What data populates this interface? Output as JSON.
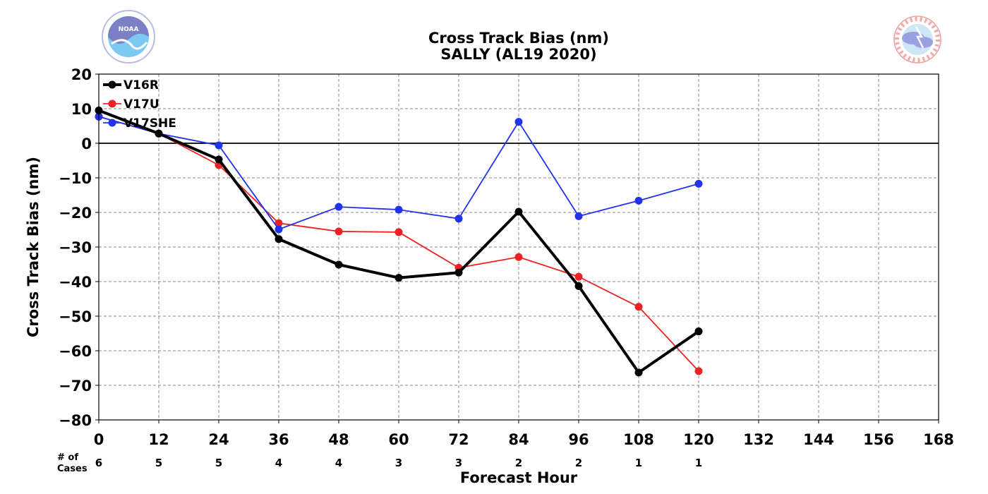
{
  "colors": {
    "V16R": "#000000",
    "V17U": "#ee2222",
    "V17SHE": "#2233ee",
    "grid": "#888888"
  },
  "logos": {
    "left": {
      "name": "noaa-logo",
      "text": "NOAA"
    },
    "right": {
      "name": "nws-logo",
      "text": "NATIONAL WEATHER SERVICE"
    }
  },
  "chart_data": {
    "type": "line",
    "title": "Cross Track Bias (nm)",
    "subtitle": "SALLY (AL19 2020)",
    "xlabel": "Forecast Hour",
    "ylabel": "Cross Track Bias (nm)",
    "xlim": [
      0,
      168
    ],
    "ylim": [
      -80,
      20
    ],
    "x_ticks": [
      0,
      12,
      24,
      36,
      48,
      60,
      72,
      84,
      96,
      108,
      120,
      132,
      144,
      156,
      168
    ],
    "y_ticks": [
      20,
      10,
      0,
      -10,
      -20,
      -30,
      -40,
      -50,
      -60,
      -70,
      -80
    ],
    "grid": true,
    "zero_line": true,
    "legend_position": "top-left",
    "cases_label": [
      "# of",
      "Cases"
    ],
    "cases": [
      6,
      5,
      5,
      4,
      4,
      3,
      3,
      2,
      2,
      1,
      1
    ],
    "x": [
      0,
      12,
      24,
      36,
      48,
      60,
      72,
      84,
      96,
      108,
      120
    ],
    "series": [
      {
        "name": "V16R",
        "color": "#000000",
        "thick": true,
        "values": [
          9.5,
          2.8,
          -4.7,
          -27.7,
          -35.1,
          -38.9,
          -37.4,
          -19.8,
          -41.3,
          -66.3,
          -54.4
        ]
      },
      {
        "name": "V17U",
        "color": "#ee2222",
        "thick": false,
        "values": [
          7.7,
          2.8,
          -6.3,
          -23.1,
          -25.5,
          -25.7,
          -36.0,
          -32.9,
          -38.6,
          -47.3,
          -65.9
        ]
      },
      {
        "name": "V17SHE",
        "color": "#2233ee",
        "thick": false,
        "values": [
          7.7,
          2.8,
          -0.6,
          -24.9,
          -18.4,
          -19.2,
          -21.8,
          6.2,
          -21.1,
          -16.6,
          -11.7
        ]
      }
    ]
  }
}
